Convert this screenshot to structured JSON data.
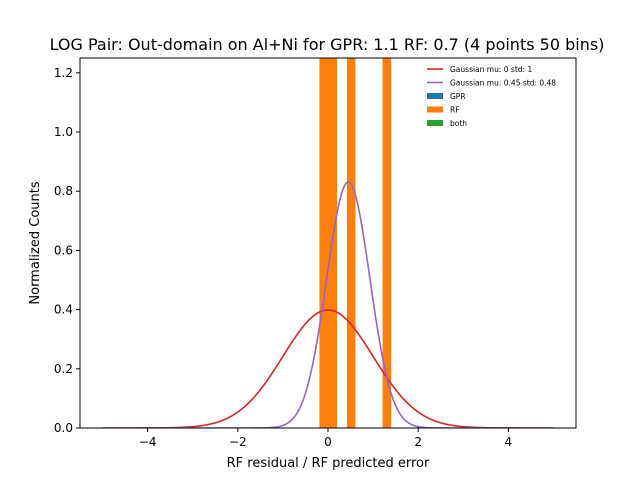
{
  "chart_data": {
    "type": "bar",
    "title": "LOG Pair: Out-domain on Al+Ni for GPR: 1.1 RF: 0.7 (4 points 50 bins)",
    "xlabel": "RF residual / RF predicted error",
    "ylabel": "Normalized Counts",
    "xlim": [
      -5.5,
      5.5
    ],
    "ylim": [
      0,
      1.25
    ],
    "xticks": [
      -4,
      -2,
      0,
      2,
      4
    ],
    "xtick_labels": [
      "−4",
      "−2",
      "0",
      "2",
      "4"
    ],
    "yticks": [
      0.0,
      0.2,
      0.4,
      0.6,
      0.8,
      1.0,
      1.2
    ],
    "ytick_labels": [
      "0.0",
      "0.2",
      "0.4",
      "0.6",
      "0.8",
      "1.0",
      "1.2"
    ],
    "grid": false,
    "legend_position": "top-right",
    "histogram": {
      "name": "RF",
      "color": "#ff7f0e",
      "bins": [
        {
          "x0": -0.19,
          "x1": 0.0,
          "height": 1.25
        },
        {
          "x0": 0.0,
          "x1": 0.2,
          "height": 1.25
        },
        {
          "x0": 0.42,
          "x1": 0.61,
          "height": 1.25
        },
        {
          "x0": 1.21,
          "x1": 1.4,
          "height": 1.25
        }
      ]
    },
    "curves": [
      {
        "name": "Gaussian mu: 0 std: 1",
        "mu": 0,
        "std": 1,
        "color": "#d62728",
        "x_range": [
          -5,
          5
        ]
      },
      {
        "name": "Gaussian mu: 0.45 std: 0.48",
        "mu": 0.45,
        "std": 0.48,
        "color": "#9467bd",
        "x_range": [
          -5,
          5
        ]
      }
    ],
    "legend": [
      {
        "label": "Gaussian mu: 0 std: 1",
        "kind": "line",
        "color": "#d62728"
      },
      {
        "label": "Gaussian mu: 0.45 std: 0.48",
        "kind": "line",
        "color": "#9467bd"
      },
      {
        "label": "GPR",
        "kind": "patch",
        "color": "#1f77b4"
      },
      {
        "label": "RF",
        "kind": "patch",
        "color": "#ff7f0e"
      },
      {
        "label": "both",
        "kind": "patch",
        "color": "#2ca02c"
      }
    ]
  }
}
